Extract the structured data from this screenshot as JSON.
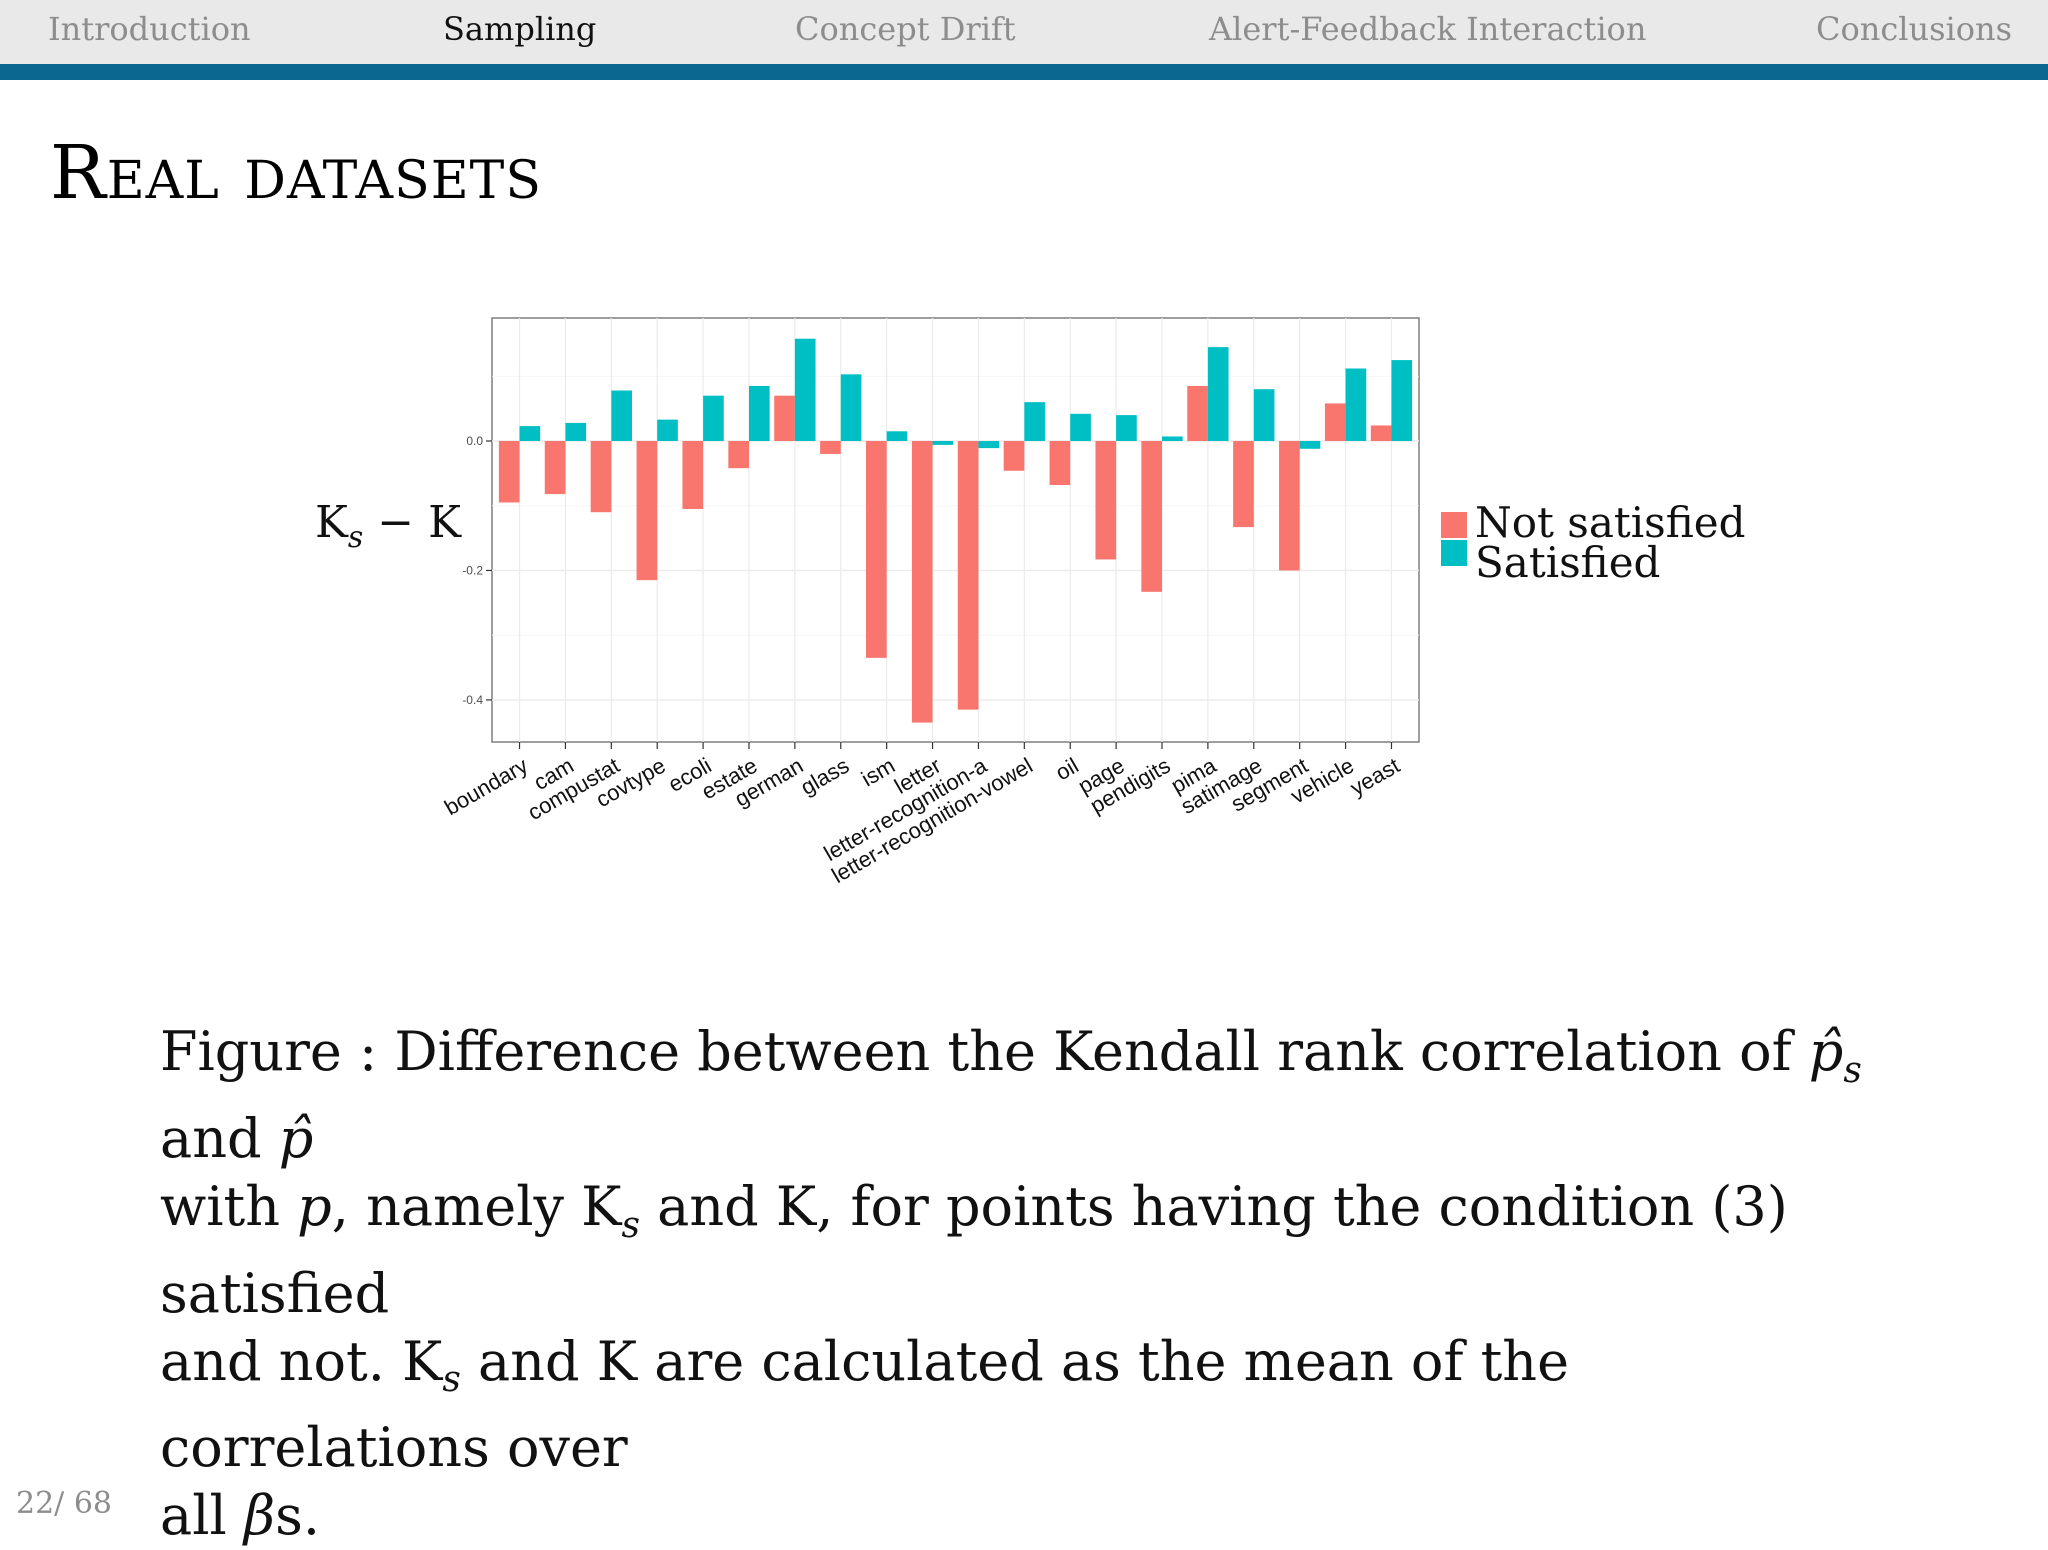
{
  "nav": {
    "items": [
      {
        "label": "Introduction",
        "active": false
      },
      {
        "label": "Sampling",
        "active": true
      },
      {
        "label": "Concept Drift",
        "active": false
      },
      {
        "label": "Alert-Feedback Interaction",
        "active": false
      },
      {
        "label": "Conclusions",
        "active": false
      }
    ]
  },
  "slide": {
    "title": "Real datasets"
  },
  "caption": {
    "figure_label": "Figure :",
    "line1_a": "Difference between the Kendall rank correlation of",
    "p_hat_s": "p̂",
    "sub_s": "s",
    "and_word": "and",
    "p_hat": "p̂",
    "line2_a": "with",
    "p_var": "p",
    "line2_b": ", namely K",
    "line2_c": "and K, for points having the condition (3) satisfied",
    "line3_a": "and not. K",
    "line3_b": "and K are calculated as the mean of the correlations over",
    "line4_a": "all",
    "beta": "β",
    "line4_b": "s."
  },
  "page": {
    "number": "22/ 68"
  },
  "colors": {
    "not_satisfied": "#f8766d",
    "satisfied": "#00bfc4",
    "nav_stripe": "#0b6690"
  },
  "chart_data": {
    "type": "bar",
    "ylabel": "Ks − K",
    "ylabel_main": "K",
    "ylabel_sub": "s",
    "ylabel_rest": " − K",
    "xlabel": "",
    "ylim": [
      -0.465,
      0.19
    ],
    "yticks": [
      {
        "value": 0.0,
        "label": "0.0"
      },
      {
        "value": -0.2,
        "label": "-0.2"
      },
      {
        "value": -0.4,
        "label": "-0.4"
      }
    ],
    "legend_position": "right",
    "grid": true,
    "categories": [
      "boundary",
      "cam",
      "compustat",
      "covtype",
      "ecoli",
      "estate",
      "german",
      "glass",
      "ism",
      "letter",
      "letter-recognition-a",
      "letter-recognition-vowel",
      "oil",
      "page",
      "pendigits",
      "pima",
      "satimage",
      "segment",
      "vehicle",
      "yeast"
    ],
    "series": [
      {
        "name": "Not satisfied",
        "values": [
          -0.095,
          -0.082,
          -0.11,
          -0.215,
          -0.105,
          -0.042,
          0.07,
          -0.02,
          -0.335,
          -0.435,
          -0.415,
          -0.046,
          -0.068,
          -0.183,
          -0.233,
          0.085,
          -0.133,
          -0.2,
          0.058,
          0.024
        ]
      },
      {
        "name": "Satisfied",
        "values": [
          0.023,
          0.028,
          0.078,
          0.033,
          0.07,
          0.085,
          0.158,
          0.103,
          0.015,
          -0.006,
          -0.011,
          0.06,
          0.042,
          0.04,
          0.007,
          0.145,
          0.08,
          -0.012,
          0.112,
          0.125
        ]
      }
    ]
  }
}
